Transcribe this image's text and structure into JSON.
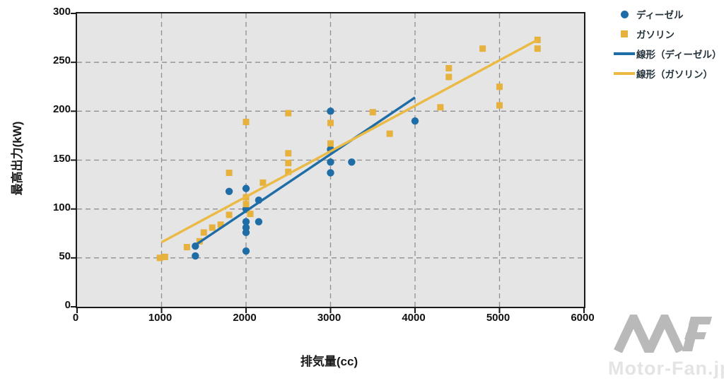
{
  "chart_data": {
    "type": "scatter",
    "xlabel": "排気量(cc)",
    "ylabel": "最高出力(kW)",
    "xlim": [
      0,
      6000
    ],
    "ylim": [
      0,
      300
    ],
    "x_ticks": [
      0,
      1000,
      2000,
      3000,
      4000,
      5000,
      6000
    ],
    "y_ticks": [
      0,
      50,
      100,
      150,
      200,
      250,
      300
    ],
    "grid": "dashed",
    "legend_position": "top-right-outside",
    "plot_bg": "#e5e5e5",
    "grid_color": "#8f8f8f",
    "series": [
      {
        "name": "ディーゼル",
        "marker": "circle",
        "color": "#1e6da6",
        "points": [
          [
            1400,
            52
          ],
          [
            1400,
            62
          ],
          [
            1800,
            118
          ],
          [
            2000,
            121
          ],
          [
            2000,
            100
          ],
          [
            2000,
            87
          ],
          [
            2000,
            81
          ],
          [
            2000,
            76
          ],
          [
            2000,
            57
          ],
          [
            2150,
            109
          ],
          [
            2150,
            87
          ],
          [
            3000,
            200
          ],
          [
            3000,
            161
          ],
          [
            3000,
            148
          ],
          [
            3000,
            137
          ],
          [
            3250,
            148
          ],
          [
            4000,
            190
          ]
        ]
      },
      {
        "name": "ガソリン",
        "marker": "square",
        "color": "#e6b13c",
        "points": [
          [
            980,
            50
          ],
          [
            1040,
            51
          ],
          [
            1300,
            61
          ],
          [
            1450,
            67
          ],
          [
            1500,
            76
          ],
          [
            1600,
            81
          ],
          [
            1700,
            84
          ],
          [
            1800,
            94
          ],
          [
            1800,
            137
          ],
          [
            2000,
            189
          ],
          [
            2000,
            112
          ],
          [
            2000,
            105
          ],
          [
            2050,
            95
          ],
          [
            2200,
            127
          ],
          [
            2500,
            198
          ],
          [
            2500,
            157
          ],
          [
            2500,
            147
          ],
          [
            2500,
            138
          ],
          [
            3000,
            188
          ],
          [
            3000,
            167
          ],
          [
            3500,
            199
          ],
          [
            3700,
            177
          ],
          [
            4300,
            204
          ],
          [
            4400,
            244
          ],
          [
            4400,
            235
          ],
          [
            4800,
            264
          ],
          [
            5000,
            225
          ],
          [
            5000,
            206
          ],
          [
            5450,
            273
          ],
          [
            5450,
            264
          ]
        ]
      },
      {
        "name": "線形（ディーゼル）",
        "marker": "line",
        "color": "#1e6da6",
        "points": [
          [
            1380,
            62
          ],
          [
            4000,
            214
          ]
        ]
      },
      {
        "name": "線形（ガソリン）",
        "marker": "line",
        "color": "#eaba45",
        "points": [
          [
            1000,
            66
          ],
          [
            5450,
            273
          ]
        ]
      }
    ]
  },
  "watermark": {
    "logo": "MF-logo",
    "text": "Motor-Fan.jp"
  }
}
